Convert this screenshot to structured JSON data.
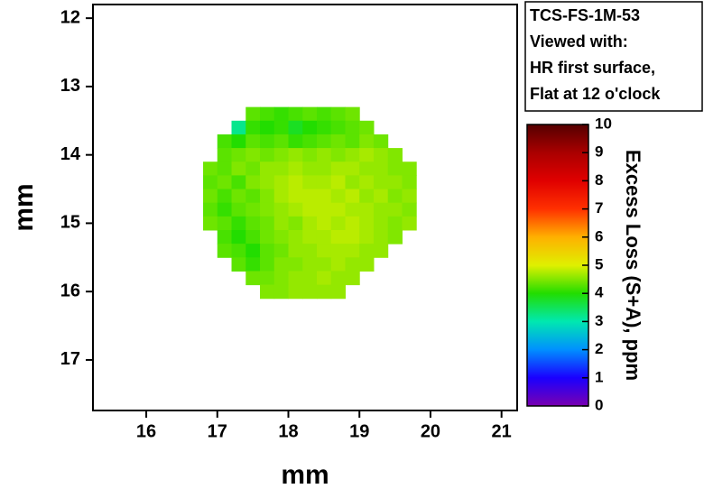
{
  "chart_data": {
    "type": "heatmap",
    "xlabel": "mm",
    "ylabel": "mm",
    "x": [
      16.9,
      17.1,
      17.3,
      17.5,
      17.7,
      17.9,
      18.1,
      18.3,
      18.5,
      18.7,
      18.9,
      19.1,
      19.3,
      19.5,
      19.7
    ],
    "y": [
      13.4,
      13.6,
      13.8,
      14.0,
      14.2,
      14.4,
      14.6,
      14.8,
      15.0,
      15.2,
      15.4,
      15.6,
      15.8,
      16.0
    ],
    "z": [
      [
        null,
        null,
        null,
        4.3,
        4.2,
        4.1,
        4.2,
        4.3,
        4.2,
        4.3,
        4.4,
        null,
        null,
        null,
        null
      ],
      [
        null,
        null,
        3.2,
        4.1,
        4.0,
        4.1,
        3.8,
        4.0,
        4.1,
        4.2,
        4.3,
        4.4,
        null,
        null,
        null
      ],
      [
        null,
        4.2,
        4.0,
        4.3,
        4.2,
        4.3,
        4.1,
        4.2,
        4.3,
        4.4,
        4.3,
        4.5,
        4.4,
        null,
        null
      ],
      [
        null,
        4.3,
        4.4,
        4.5,
        4.4,
        4.5,
        4.6,
        4.5,
        4.6,
        4.5,
        4.6,
        4.7,
        4.6,
        4.5,
        null
      ],
      [
        4.4,
        4.3,
        4.5,
        4.4,
        4.6,
        4.6,
        4.7,
        4.6,
        4.6,
        4.7,
        4.7,
        4.6,
        4.6,
        4.5,
        4.5
      ],
      [
        4.3,
        4.4,
        4.2,
        4.5,
        4.6,
        4.7,
        4.8,
        4.7,
        4.7,
        4.8,
        4.6,
        4.7,
        4.6,
        4.6,
        4.5
      ],
      [
        4.4,
        4.2,
        4.4,
        4.3,
        4.5,
        4.7,
        4.8,
        4.8,
        4.8,
        4.7,
        4.8,
        4.6,
        4.7,
        4.5,
        4.6
      ],
      [
        4.3,
        4.1,
        4.3,
        4.4,
        4.5,
        4.6,
        4.7,
        4.8,
        4.8,
        4.8,
        4.7,
        4.7,
        4.6,
        4.6,
        4.5
      ],
      [
        4.4,
        4.3,
        4.1,
        4.3,
        4.4,
        4.6,
        4.5,
        4.7,
        4.8,
        4.7,
        4.8,
        4.7,
        4.6,
        4.5,
        4.6
      ],
      [
        null,
        4.2,
        4.0,
        4.2,
        4.4,
        4.5,
        4.6,
        4.7,
        4.7,
        4.8,
        4.8,
        4.7,
        4.6,
        4.5,
        null
      ],
      [
        null,
        4.3,
        4.2,
        4.0,
        4.3,
        4.4,
        4.6,
        4.6,
        4.7,
        4.7,
        4.7,
        4.6,
        4.6,
        null,
        null
      ],
      [
        null,
        null,
        4.3,
        4.1,
        4.3,
        4.5,
        4.5,
        4.6,
        4.6,
        4.7,
        4.6,
        4.6,
        null,
        null,
        null
      ],
      [
        null,
        null,
        null,
        4.4,
        4.4,
        4.5,
        4.6,
        4.6,
        4.7,
        4.6,
        4.6,
        null,
        null,
        null,
        null
      ],
      [
        null,
        null,
        null,
        null,
        4.5,
        4.5,
        4.6,
        4.6,
        4.6,
        4.6,
        null,
        null,
        null,
        null,
        null
      ]
    ],
    "xlim": [
      15.25,
      21.22
    ],
    "ylim": [
      17.74,
      11.8
    ],
    "xticks": [
      16,
      17,
      18,
      19,
      20,
      21
    ],
    "yticks": [
      12,
      13,
      14,
      15,
      16,
      17
    ],
    "annotation": [
      "TCS-FS-1M-53",
      "Viewed with:",
      "HR first surface,",
      "Flat at 12 o'clock"
    ],
    "colorbar": {
      "label": "Excess Loss (S+A), ppm",
      "lim": [
        0,
        10
      ],
      "ticks": [
        0,
        1,
        2,
        3,
        4,
        5,
        6,
        7,
        8,
        9,
        10
      ],
      "colors": [
        "#7a00b0",
        "#1a00ff",
        "#0090ff",
        "#00e8b0",
        "#22dd00",
        "#e0f000",
        "#ffb000",
        "#ff3000",
        "#e00000",
        "#aa0000",
        "#550000"
      ]
    }
  }
}
